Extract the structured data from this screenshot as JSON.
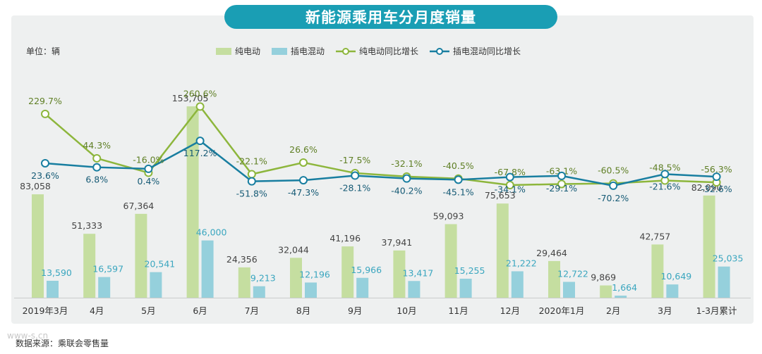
{
  "title": "新能源乘用车分月度销量",
  "unit_label": "单位：辆",
  "source_text": "数据来源：乘联会零售量",
  "watermark_text": "www-s.cn",
  "colors": {
    "bev": "#c5dea0",
    "phev": "#95d0dc",
    "bev_line": "#8db63c",
    "phev_line": "#187ea0",
    "title_bg": "#1a9eb4"
  },
  "chart_data": {
    "type": "bar+line",
    "categories": [
      "2019年3月",
      "4月",
      "5月",
      "6月",
      "7月",
      "8月",
      "9月",
      "10月",
      "11月",
      "12月",
      "2020年1月",
      "2月",
      "3月",
      "1-3月累计"
    ],
    "series": [
      {
        "name": "纯电动",
        "kind": "bar",
        "values": [
          83058,
          51333,
          67364,
          153705,
          24356,
          32044,
          41196,
          37941,
          59093,
          75653,
          29464,
          9869,
          42757,
          82090
        ],
        "labels": [
          "83,058",
          "51,333",
          "67,364",
          "153,705",
          "24,356",
          "32,044",
          "41,196",
          "37,941",
          "59,093",
          "75,653",
          "29,464",
          "9,869",
          "42,757",
          "82,090"
        ]
      },
      {
        "name": "插电混动",
        "kind": "bar",
        "values": [
          13590,
          16597,
          20541,
          46000,
          9213,
          12196,
          15966,
          13417,
          15255,
          21222,
          12722,
          1664,
          10649,
          25035
        ],
        "labels": [
          "13,590",
          "16,597",
          "20,541",
          "46,000",
          "9,213",
          "12,196",
          "15,966",
          "13,417",
          "15,255",
          "21,222",
          "12,722",
          "1,664",
          "10,649",
          "25,035"
        ]
      },
      {
        "name": "纯电动同比增长",
        "kind": "line",
        "values": [
          229.7,
          44.3,
          -16.0,
          260.6,
          -22.1,
          26.6,
          -17.5,
          -32.1,
          -40.5,
          -67.8,
          -63.1,
          -60.5,
          -48.5,
          -56.3
        ],
        "labels": [
          "229.7%",
          "44.3%",
          "-16.0%",
          "260.6%",
          "-22.1%",
          "26.6%",
          "-17.5%",
          "-32.1%",
          "-40.5%",
          "-67.8%",
          "-63.1%",
          "-60.5%",
          "-48.5%",
          "-56.3%"
        ]
      },
      {
        "name": "插电混动同比增长",
        "kind": "line",
        "values": [
          23.6,
          6.8,
          0.4,
          117.2,
          -51.8,
          -47.3,
          -28.1,
          -40.2,
          -45.1,
          -34.1,
          -29.1,
          -70.2,
          -21.6,
          -32.6
        ],
        "labels": [
          "23.6%",
          "6.8%",
          "0.4%",
          "117.2%",
          "-51.8%",
          "-47.3%",
          "-28.1%",
          "-40.2%",
          "-45.1%",
          "-34.1%",
          "-29.1%",
          "-70.2%",
          "-21.6%",
          "-32.6%"
        ]
      }
    ],
    "y_bar_range": [
      0,
      160000
    ],
    "y_line_range": [
      -100,
      300
    ]
  }
}
